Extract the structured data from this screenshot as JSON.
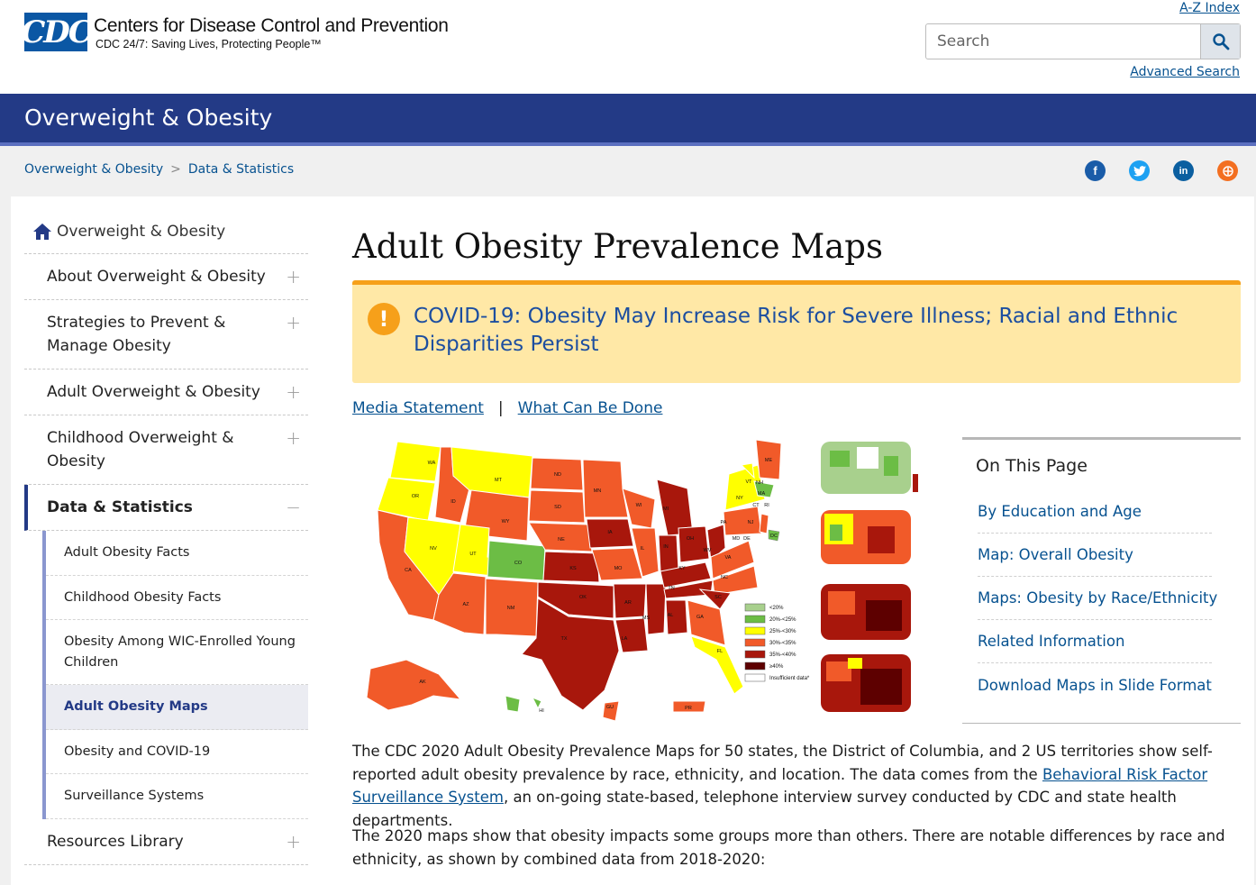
{
  "header": {
    "logo_text": "CDC",
    "org_name": "Centers for Disease Control and Prevention",
    "tagline": "CDC 24/7: Saving Lives, Protecting People™",
    "az_index": "A-Z Index",
    "search_placeholder": "Search",
    "advanced_search": "Advanced Search"
  },
  "section_title": "Overweight & Obesity",
  "breadcrumb": [
    "Overweight & Obesity",
    "Data & Statistics"
  ],
  "social": [
    "facebook-icon",
    "twitter-icon",
    "linkedin-icon",
    "syndicate-icon"
  ],
  "colors": {
    "brand_blue": "#233a86",
    "alert_bg": "#ffe8a6",
    "alert_accent": "#f6a01a",
    "link": "#075290",
    "map_lt20": "#a8d08d",
    "map_20_25": "#6cbd45",
    "map_25_30": "#ffff00",
    "map_30_35": "#f15a29",
    "map_35_40": "#a8170c",
    "map_ge40": "#5d0000"
  },
  "sidebar": {
    "home": "Overweight & Obesity",
    "items": [
      {
        "label": "About Overweight & Obesity",
        "expand": "+"
      },
      {
        "label": "Strategies to Prevent & Manage Obesity",
        "expand": "+"
      },
      {
        "label": "Adult Overweight & Obesity",
        "expand": "+"
      },
      {
        "label": "Childhood Overweight & Obesity",
        "expand": "+"
      },
      {
        "label": "Data & Statistics",
        "expand": "−"
      },
      {
        "label": "Resources Library",
        "expand": "+"
      }
    ],
    "sub_items": [
      "Adult Obesity Facts",
      "Childhood Obesity Facts",
      "Obesity Among WIC-Enrolled Young Children",
      "Adult Obesity Maps",
      "Obesity and COVID-19",
      "Surveillance Systems"
    ]
  },
  "main": {
    "title": "Adult Obesity Prevalence Maps",
    "alert_icon": "!",
    "alert_text": "COVID-19: Obesity May Increase Risk for Severe Illness; Racial and Ethnic Disparities Persist",
    "link_media": "Media Statement",
    "link_sep": "|",
    "link_done": "What Can Be Done",
    "map": {
      "states": [
        "WA",
        "OR",
        "CA",
        "ID",
        "NV",
        "MT",
        "WY",
        "UT",
        "AZ",
        "CO",
        "NM",
        "ND",
        "SD",
        "NE",
        "KS",
        "OK",
        "TX",
        "MN",
        "IA",
        "MO",
        "AR",
        "LA",
        "WI",
        "IL",
        "MS",
        "MI",
        "IN",
        "KY",
        "TN",
        "AL",
        "OH",
        "WV",
        "VA",
        "NC",
        "SC",
        "GA",
        "FL",
        "PA",
        "NY",
        "VT",
        "NH",
        "ME",
        "MA",
        "CT",
        "RI",
        "NJ",
        "DE",
        "MD",
        "DC",
        "AK",
        "HI",
        "GU",
        "PR"
      ],
      "legend": [
        "<20%",
        "20%-<25%",
        "25%-<30%",
        "30%-<35%",
        "35%-<40%",
        "≥40%",
        "Insufficient data*"
      ]
    },
    "on_this_page": {
      "heading": "On This Page",
      "links": [
        "By Education and Age",
        "Map: Overall Obesity",
        "Maps: Obesity by Race/Ethnicity",
        "Related Information",
        "Download Maps in Slide Format"
      ]
    },
    "para1_a": "The CDC 2020 Adult Obesity Prevalence Maps for 50 states, the District of Columbia, and 2 US territories show self-reported adult obesity prevalence by race, ethnicity, and location. The data comes from the ",
    "para1_link": "Behavioral Risk Factor Surveillance System",
    "para1_b": ", an on-going state-based, telephone interview survey conducted by CDC and state health departments.",
    "para2": "The 2020 maps show that obesity impacts some groups more than others. There are notable differences by race and ethnicity, as shown by combined data from 2018-2020:"
  }
}
